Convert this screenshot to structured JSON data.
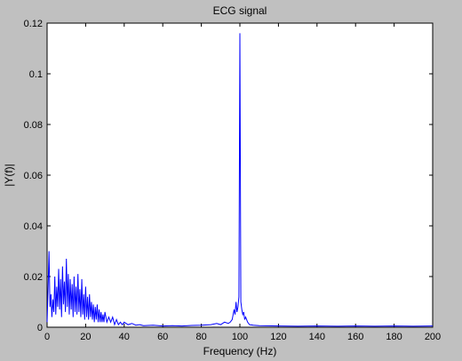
{
  "chart_data": {
    "type": "line",
    "title": "ECG signal",
    "xlabel": "Frequency (Hz)",
    "ylabel": "|Y(f)|",
    "xlim": [
      0,
      200
    ],
    "ylim": [
      0,
      0.12
    ],
    "x_ticks": [
      0,
      20,
      40,
      60,
      80,
      100,
      120,
      140,
      160,
      180,
      200
    ],
    "y_ticks": [
      0,
      0.02,
      0.04,
      0.06,
      0.08,
      0.1,
      0.12
    ],
    "x_tick_labels": [
      "0",
      "20",
      "40",
      "60",
      "80",
      "100",
      "120",
      "140",
      "160",
      "180",
      "200"
    ],
    "y_tick_labels": [
      "0",
      "0.02",
      "0.04",
      "0.06",
      "0.08",
      "0.1",
      "0.12"
    ],
    "grid": false,
    "line_color": "#0000ff",
    "series": [
      {
        "points": [
          [
            0,
            0.002
          ],
          [
            0.5,
            0.015
          ],
          [
            1,
            0.03
          ],
          [
            1.5,
            0.008
          ],
          [
            2,
            0.013
          ],
          [
            2.5,
            0.004
          ],
          [
            3,
            0.011
          ],
          [
            3.5,
            0.006
          ],
          [
            4,
            0.02
          ],
          [
            4.5,
            0.005
          ],
          [
            5,
            0.016
          ],
          [
            5.5,
            0.008
          ],
          [
            6,
            0.023
          ],
          [
            6.5,
            0.007
          ],
          [
            7,
            0.019
          ],
          [
            7.5,
            0.004
          ],
          [
            8,
            0.024
          ],
          [
            8.5,
            0.009
          ],
          [
            9,
            0.018
          ],
          [
            9.5,
            0.006
          ],
          [
            10,
            0.027
          ],
          [
            10.5,
            0.008
          ],
          [
            11,
            0.021
          ],
          [
            11.5,
            0.005
          ],
          [
            12,
            0.019
          ],
          [
            12.5,
            0.007
          ],
          [
            13,
            0.017
          ],
          [
            13.5,
            0.004
          ],
          [
            14,
            0.02
          ],
          [
            14.5,
            0.006
          ],
          [
            15,
            0.016
          ],
          [
            15.5,
            0.005
          ],
          [
            16,
            0.021
          ],
          [
            16.5,
            0.006
          ],
          [
            17,
            0.015
          ],
          [
            17.5,
            0.004
          ],
          [
            18,
            0.019
          ],
          [
            18.5,
            0.005
          ],
          [
            19,
            0.013
          ],
          [
            19.5,
            0.003
          ],
          [
            20,
            0.016
          ],
          [
            20.5,
            0.004
          ],
          [
            21,
            0.012
          ],
          [
            21.5,
            0.003
          ],
          [
            22,
            0.013
          ],
          [
            22.5,
            0.004
          ],
          [
            23,
            0.01
          ],
          [
            23.5,
            0.003
          ],
          [
            24,
            0.009
          ],
          [
            24.5,
            0.002
          ],
          [
            25,
            0.008
          ],
          [
            25.5,
            0.003
          ],
          [
            26,
            0.009
          ],
          [
            26.5,
            0.002
          ],
          [
            27,
            0.007
          ],
          [
            27.5,
            0.002
          ],
          [
            28,
            0.006
          ],
          [
            28.5,
            0.002
          ],
          [
            29,
            0.005
          ],
          [
            29.5,
            0.002
          ],
          [
            30,
            0.006
          ],
          [
            31,
            0.002
          ],
          [
            32,
            0.004
          ],
          [
            33,
            0.002
          ],
          [
            34,
            0.004
          ],
          [
            35,
            0.001
          ],
          [
            36,
            0.003
          ],
          [
            37,
            0.001
          ],
          [
            38,
            0.002
          ],
          [
            39,
            0.001
          ],
          [
            40,
            0.002
          ],
          [
            42,
            0.001
          ],
          [
            44,
            0.0015
          ],
          [
            46,
            0.0008
          ],
          [
            48,
            0.001
          ],
          [
            50,
            0.0006
          ],
          [
            55,
            0.0008
          ],
          [
            60,
            0.0005
          ],
          [
            65,
            0.0006
          ],
          [
            70,
            0.0005
          ],
          [
            75,
            0.0007
          ],
          [
            80,
            0.0008
          ],
          [
            85,
            0.001
          ],
          [
            88,
            0.0015
          ],
          [
            90,
            0.001
          ],
          [
            92,
            0.002
          ],
          [
            94,
            0.0015
          ],
          [
            95,
            0.002
          ],
          [
            96,
            0.003
          ],
          [
            97,
            0.007
          ],
          [
            97.5,
            0.005
          ],
          [
            98,
            0.01
          ],
          [
            98.5,
            0.006
          ],
          [
            99,
            0.008
          ],
          [
            99.5,
            0.012
          ],
          [
            100,
            0.116
          ],
          [
            100.5,
            0.01
          ],
          [
            101,
            0.007
          ],
          [
            101.5,
            0.005
          ],
          [
            102,
            0.006
          ],
          [
            102.5,
            0.003
          ],
          [
            103,
            0.004
          ],
          [
            104,
            0.002
          ],
          [
            105,
            0.001
          ],
          [
            107,
            0.0008
          ],
          [
            110,
            0.0006
          ],
          [
            120,
            0.0005
          ],
          [
            130,
            0.0004
          ],
          [
            140,
            0.0005
          ],
          [
            150,
            0.0004
          ],
          [
            160,
            0.0005
          ],
          [
            170,
            0.0004
          ],
          [
            180,
            0.0005
          ],
          [
            190,
            0.0004
          ],
          [
            200,
            0.0005
          ]
        ]
      }
    ]
  }
}
